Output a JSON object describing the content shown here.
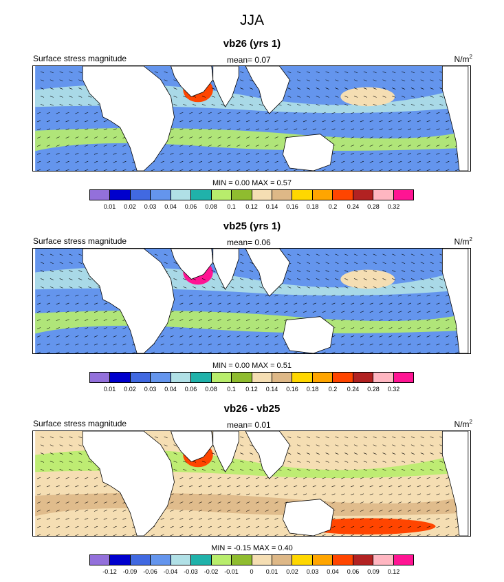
{
  "title": "JJA",
  "panels": [
    {
      "title": "vb26 (yrs 1)",
      "left_string": "Surface stress magnitude",
      "mean_label": "mean=",
      "mean_value": "0.07",
      "units": "N/m",
      "units_exp": "2",
      "min_label": "MIN =",
      "min_value": "0.00",
      "max_label": "MAX =",
      "max_value": "0.57",
      "levels": [
        "0.01",
        "0.02",
        "0.03",
        "0.04",
        "0.06",
        "0.08",
        "0.1",
        "0.12",
        "0.14",
        "0.16",
        "0.18",
        "0.2",
        "0.24",
        "0.28",
        "0.32"
      ],
      "colors": [
        "#9370db",
        "#0000cd",
        "#4169e1",
        "#6495ed",
        "#b0e0e6",
        "#20b2aa",
        "#b8ed6c",
        "#8fbc2f",
        "#f5deb3",
        "#deb887",
        "#ffd700",
        "#ffa500",
        "#ff4500",
        "#b22222",
        "#ffb6c1",
        "#ff1493"
      ],
      "background": "#6495ed",
      "field": [
        {
          "shape": "band-n",
          "color": "#b0e0e6"
        },
        {
          "shape": "band-s",
          "color": "#b8ed6c"
        },
        {
          "shape": "spot-arabian",
          "color": "#ff4500"
        },
        {
          "shape": "spot-npac",
          "color": "#f5deb3"
        }
      ]
    },
    {
      "title": "vb25 (yrs 1)",
      "left_string": "Surface stress magnitude",
      "mean_label": "mean=",
      "mean_value": "0.06",
      "units": "N/m",
      "units_exp": "2",
      "min_label": "MIN =",
      "min_value": "0.00",
      "max_label": "MAX =",
      "max_value": "0.51",
      "levels": [
        "0.01",
        "0.02",
        "0.03",
        "0.04",
        "0.06",
        "0.08",
        "0.1",
        "0.12",
        "0.14",
        "0.16",
        "0.18",
        "0.2",
        "0.24",
        "0.28",
        "0.32"
      ],
      "colors": [
        "#9370db",
        "#0000cd",
        "#4169e1",
        "#6495ed",
        "#b0e0e6",
        "#20b2aa",
        "#b8ed6c",
        "#8fbc2f",
        "#f5deb3",
        "#deb887",
        "#ffd700",
        "#ffa500",
        "#ff4500",
        "#b22222",
        "#ffb6c1",
        "#ff1493"
      ],
      "background": "#6495ed",
      "field": [
        {
          "shape": "band-n",
          "color": "#b0e0e6"
        },
        {
          "shape": "band-s",
          "color": "#b8ed6c"
        },
        {
          "shape": "spot-arabian",
          "color": "#ff1493"
        },
        {
          "shape": "spot-npac",
          "color": "#f5deb3"
        }
      ]
    },
    {
      "title": "vb26 - vb25",
      "left_string": "Surface stress magnitude",
      "mean_label": "mean=",
      "mean_value": "0.01",
      "units": "N/m",
      "units_exp": "2",
      "min_label": "MIN =",
      "min_value": "-0.15",
      "max_label": "MAX =",
      "max_value": "0.40",
      "levels": [
        "-0.12",
        "-0.09",
        "-0.06",
        "-0.04",
        "-0.03",
        "-0.02",
        "-0.01",
        "0",
        "0.01",
        "0.02",
        "0.03",
        "0.04",
        "0.06",
        "0.09",
        "0.12"
      ],
      "colors": [
        "#9370db",
        "#0000cd",
        "#4169e1",
        "#6495ed",
        "#b0e0e6",
        "#20b2aa",
        "#b8ed6c",
        "#8fbc2f",
        "#f5deb3",
        "#deb887",
        "#ffd700",
        "#ffa500",
        "#ff4500",
        "#b22222",
        "#ffb6c1",
        "#ff1493"
      ],
      "background": "#f5deb3",
      "field": [
        {
          "shape": "band-n",
          "color": "#b8ed6c"
        },
        {
          "shape": "band-s",
          "color": "#deb887"
        },
        {
          "shape": "spot-arabian",
          "color": "#ff4500"
        },
        {
          "shape": "spot-npac",
          "color": "#ff4500"
        }
      ]
    }
  ]
}
